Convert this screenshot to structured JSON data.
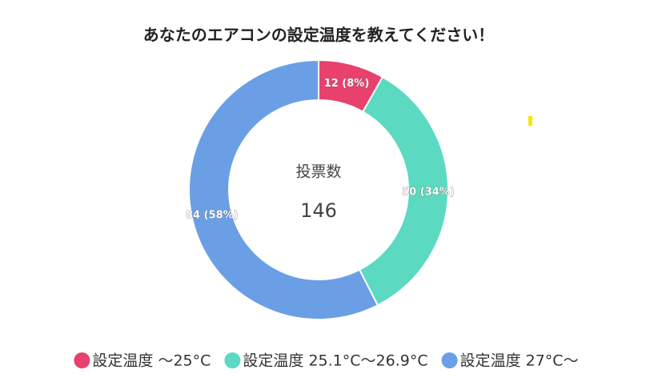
{
  "chart_data": {
    "type": "donut",
    "title": "あなたのエアコンの設定温度を教えてください！",
    "categories": [
      "設定温度 〜25°C",
      "設定温度 25.1°C〜26.9°C",
      "設定温度 27°C〜"
    ],
    "values": [
      12,
      50,
      84
    ],
    "value_labels": [
      "12 (8%)",
      "50 (34%)",
      "84 (58%)"
    ],
    "colors": [
      "#e8416e",
      "#5cd9c1",
      "#6a9fe6"
    ],
    "center_label": "投票数",
    "total": 146
  }
}
